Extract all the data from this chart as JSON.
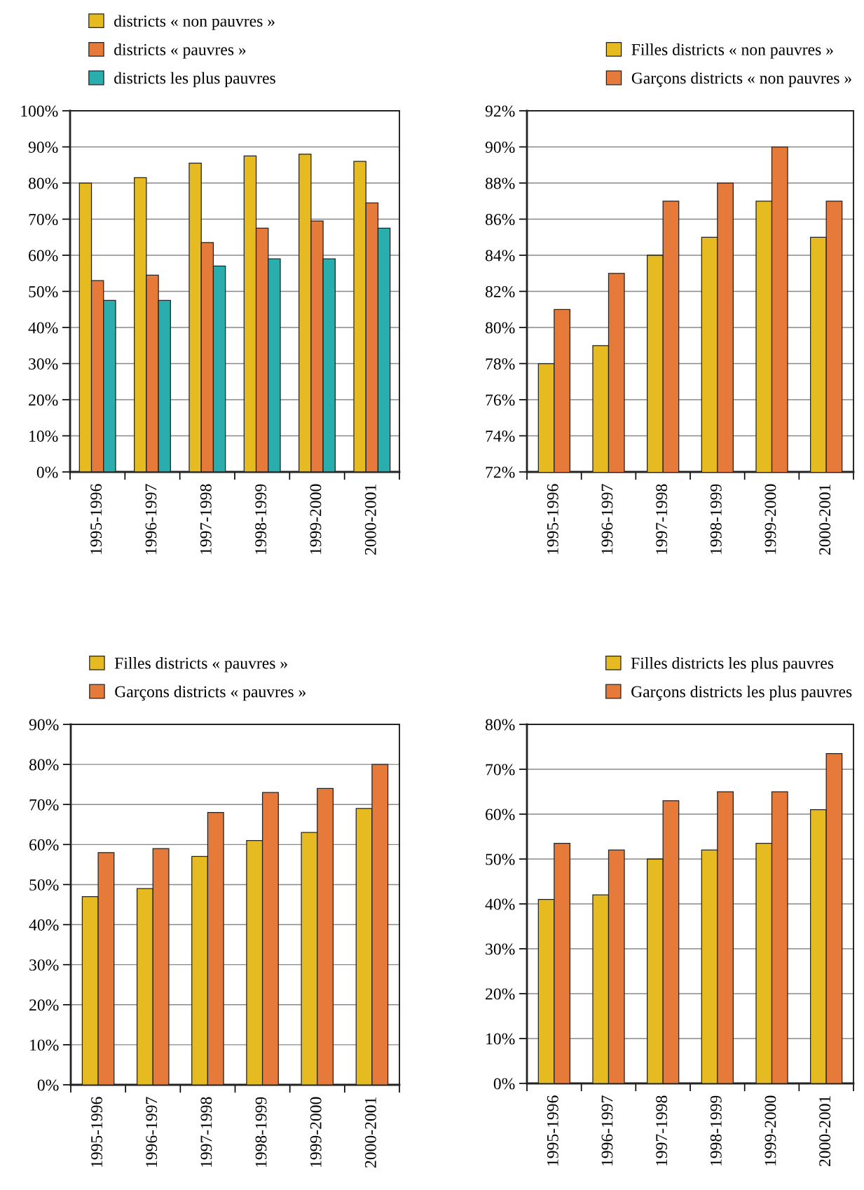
{
  "chart_data": [
    {
      "type": "bar",
      "categories": [
        "1995-1996",
        "1996-1997",
        "1997-1998",
        "1998-1999",
        "1999-2000",
        "2000-2001"
      ],
      "series": [
        {
          "name": "districts « non pauvres »",
          "color": "#e6bb22",
          "values": [
            80,
            81.5,
            85.5,
            87.5,
            88,
            86
          ]
        },
        {
          "name": "districts « pauvres »",
          "color": "#e57a3a",
          "values": [
            53,
            54.5,
            63.5,
            67.5,
            69.5,
            74.5
          ]
        },
        {
          "name": "districts les plus pauvres",
          "color": "#2aadad",
          "values": [
            47.5,
            47.5,
            57,
            59,
            59,
            67.5
          ]
        }
      ],
      "ylim": [
        0,
        100
      ],
      "yticks": [
        {
          "value": 0,
          "label": "0%"
        },
        {
          "value": 10,
          "label": "10%"
        },
        {
          "value": 20,
          "label": "20%"
        },
        {
          "value": 30,
          "label": "30%"
        },
        {
          "value": 40,
          "label": "40%"
        },
        {
          "value": 50,
          "label": "50%"
        },
        {
          "value": 60,
          "label": "60%"
        },
        {
          "value": 70,
          "label": "70%"
        },
        {
          "value": 80,
          "label": "80%"
        },
        {
          "value": 90,
          "label": "90%"
        },
        {
          "value": 100,
          "label": "100%"
        }
      ],
      "grid": "y",
      "legend": "top left"
    },
    {
      "type": "bar",
      "categories": [
        "1995-1996",
        "1996-1997",
        "1997-1998",
        "1998-1999",
        "1999-2000",
        "2000-2001"
      ],
      "series": [
        {
          "name": "Filles districts « non pauvres »",
          "color": "#e6bb22",
          "values": [
            78,
            79,
            84,
            85,
            87,
            85
          ]
        },
        {
          "name": "Garçons districts « non pauvres »",
          "color": "#e57a3a",
          "values": [
            81,
            83,
            87,
            88,
            90,
            87
          ]
        }
      ],
      "ylim": [
        72,
        92
      ],
      "yticks": [
        {
          "value": 72,
          "label": "72%"
        },
        {
          "value": 74,
          "label": "74%"
        },
        {
          "value": 76,
          "label": "76%"
        },
        {
          "value": 78,
          "label": "78%"
        },
        {
          "value": 80,
          "label": "80%"
        },
        {
          "value": 82,
          "label": "82%"
        },
        {
          "value": 84,
          "label": "84%"
        },
        {
          "value": 86,
          "label": "86%"
        },
        {
          "value": 88,
          "label": "88%"
        },
        {
          "value": 90,
          "label": "90%"
        },
        {
          "value": 92,
          "label": "92%"
        }
      ],
      "grid": "y",
      "legend": "top right"
    },
    {
      "type": "bar",
      "categories": [
        "1995-1996",
        "1996-1997",
        "1997-1998",
        "1998-1999",
        "1999-2000",
        "2000-2001"
      ],
      "series": [
        {
          "name": "Filles districts « pauvres »",
          "color": "#e6bb22",
          "values": [
            47,
            49,
            57,
            61,
            63,
            69
          ]
        },
        {
          "name": "Garçons districts « pauvres »",
          "color": "#e57a3a",
          "values": [
            58,
            59,
            68,
            73,
            74,
            80
          ]
        }
      ],
      "ylim": [
        0,
        90
      ],
      "yticks": [
        {
          "value": 0,
          "label": "0%"
        },
        {
          "value": 10,
          "label": "10%"
        },
        {
          "value": 20,
          "label": "20%"
        },
        {
          "value": 30,
          "label": "30%"
        },
        {
          "value": 40,
          "label": "40%"
        },
        {
          "value": 50,
          "label": "50%"
        },
        {
          "value": 60,
          "label": "60%"
        },
        {
          "value": 70,
          "label": "70%"
        },
        {
          "value": 80,
          "label": "80%"
        },
        {
          "value": 90,
          "label": "90%"
        }
      ],
      "grid": "y",
      "legend": "top left"
    },
    {
      "type": "bar",
      "categories": [
        "1995-1996",
        "1996-1997",
        "1997-1998",
        "1998-1999",
        "1999-2000",
        "2000-2001"
      ],
      "series": [
        {
          "name": "Filles districts les plus pauvres",
          "color": "#e6bb22",
          "values": [
            41,
            42,
            50,
            52,
            53.5,
            61
          ]
        },
        {
          "name": "Garçons districts les plus pauvres",
          "color": "#e57a3a",
          "values": [
            53.5,
            52,
            63,
            65,
            65,
            73.5
          ]
        }
      ],
      "ylim": [
        0,
        80
      ],
      "yticks": [
        {
          "value": 0,
          "label": "0%"
        },
        {
          "value": 10,
          "label": "10%"
        },
        {
          "value": 20,
          "label": "20%"
        },
        {
          "value": 30,
          "label": "30%"
        },
        {
          "value": 40,
          "label": "40%"
        },
        {
          "value": 50,
          "label": "50%"
        },
        {
          "value": 60,
          "label": "60%"
        },
        {
          "value": 70,
          "label": "70%"
        },
        {
          "value": 80,
          "label": "80%"
        }
      ],
      "grid": "y",
      "legend": "top right"
    }
  ]
}
